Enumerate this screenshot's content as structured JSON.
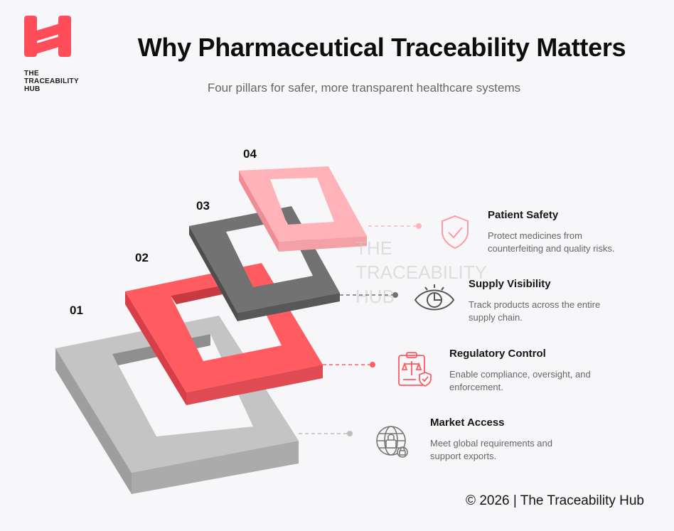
{
  "brand": {
    "logo_lines": [
      "THE",
      "TRACEABILITY",
      "HUB"
    ],
    "accent": "#ff4d5a"
  },
  "header": {
    "title": "Why Pharmaceutical Traceability Matters",
    "subtitle": "Four pillars for safer, more transparent healthcare systems"
  },
  "watermark": [
    "THE",
    "TRACEABILITY",
    "HUB"
  ],
  "layers": [
    {
      "number": "01",
      "color": "#bdbdbd"
    },
    {
      "number": "02",
      "color": "#ff5a5f"
    },
    {
      "number": "03",
      "color": "#6f6f6f"
    },
    {
      "number": "04",
      "color": "#ffaeb5"
    }
  ],
  "pillars": [
    {
      "title": "Patient Safety",
      "description": "Protect medicines from counterfeiting and quality risks.",
      "icon": "shield-check-icon"
    },
    {
      "title": "Supply Visibility",
      "description": "Track products across the entire supply chain.",
      "icon": "eye-icon"
    },
    {
      "title": "Regulatory Control",
      "description": "Enable compliance, oversight, and enforcement.",
      "icon": "clipboard-scales-icon"
    },
    {
      "title": "Market Access",
      "description": "Meet global requirements and support exports.",
      "icon": "globe-lock-icon"
    }
  ],
  "footer": {
    "text": "© 2026 | The Traceability Hub"
  }
}
